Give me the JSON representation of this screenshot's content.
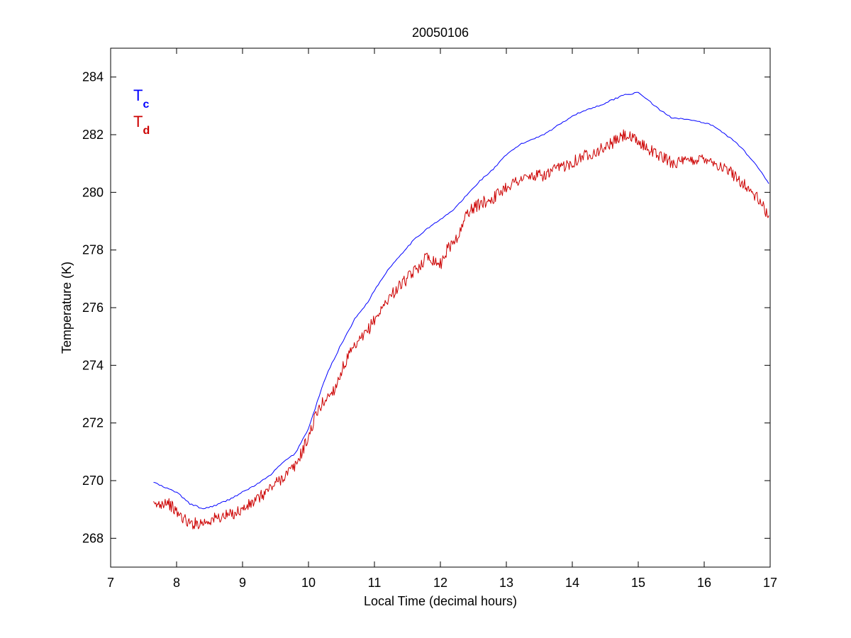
{
  "chart_data": {
    "type": "line",
    "title": "20050106",
    "xlabel": "Local Time (decimal hours)",
    "ylabel": "Temperature (K)",
    "xlim": [
      7,
      17
    ],
    "ylim": [
      267,
      285
    ],
    "xticks": [
      7,
      8,
      9,
      10,
      11,
      12,
      13,
      14,
      15,
      16,
      17
    ],
    "yticks": [
      268,
      270,
      272,
      274,
      276,
      278,
      280,
      282,
      284
    ],
    "grid": false,
    "legend_position": "top-left",
    "series": [
      {
        "name": "T",
        "subscript": "c",
        "color": "#0000ff",
        "noisy": false,
        "points": [
          [
            7.65,
            269.95
          ],
          [
            7.8,
            269.78
          ],
          [
            8.0,
            269.6
          ],
          [
            8.2,
            269.2
          ],
          [
            8.4,
            269.02
          ],
          [
            8.6,
            269.15
          ],
          [
            8.8,
            269.35
          ],
          [
            9.0,
            269.6
          ],
          [
            9.2,
            269.85
          ],
          [
            9.4,
            270.15
          ],
          [
            9.6,
            270.6
          ],
          [
            9.8,
            270.95
          ],
          [
            10.0,
            271.8
          ],
          [
            10.1,
            272.5
          ],
          [
            10.2,
            273.2
          ],
          [
            10.3,
            273.8
          ],
          [
            10.5,
            274.75
          ],
          [
            10.7,
            275.6
          ],
          [
            10.9,
            276.2
          ],
          [
            11.0,
            276.6
          ],
          [
            11.2,
            277.3
          ],
          [
            11.4,
            277.85
          ],
          [
            11.6,
            278.35
          ],
          [
            11.8,
            278.75
          ],
          [
            12.0,
            279.05
          ],
          [
            12.2,
            279.4
          ],
          [
            12.4,
            279.9
          ],
          [
            12.6,
            280.4
          ],
          [
            12.8,
            280.8
          ],
          [
            13.0,
            281.3
          ],
          [
            13.2,
            281.65
          ],
          [
            13.4,
            281.85
          ],
          [
            13.6,
            282.05
          ],
          [
            13.8,
            282.35
          ],
          [
            14.0,
            282.65
          ],
          [
            14.2,
            282.85
          ],
          [
            14.4,
            283.0
          ],
          [
            14.6,
            283.2
          ],
          [
            14.8,
            283.4
          ],
          [
            15.0,
            283.45
          ],
          [
            15.1,
            283.3
          ],
          [
            15.3,
            282.9
          ],
          [
            15.5,
            282.6
          ],
          [
            15.7,
            282.55
          ],
          [
            15.9,
            282.45
          ],
          [
            16.1,
            282.35
          ],
          [
            16.3,
            282.05
          ],
          [
            16.5,
            281.7
          ],
          [
            16.7,
            281.2
          ],
          [
            16.9,
            280.6
          ],
          [
            16.98,
            280.3
          ]
        ]
      },
      {
        "name": "T",
        "subscript": "d",
        "color": "#cc0000",
        "noisy": true,
        "points": [
          [
            7.65,
            269.1
          ],
          [
            7.85,
            269.3
          ],
          [
            8.0,
            268.9
          ],
          [
            8.2,
            268.5
          ],
          [
            8.4,
            268.55
          ],
          [
            8.6,
            268.7
          ],
          [
            8.8,
            268.8
          ],
          [
            9.0,
            269.0
          ],
          [
            9.2,
            269.3
          ],
          [
            9.4,
            269.7
          ],
          [
            9.6,
            270.1
          ],
          [
            9.8,
            270.5
          ],
          [
            10.0,
            271.5
          ],
          [
            10.1,
            272.2
          ],
          [
            10.2,
            272.65
          ],
          [
            10.4,
            273.2
          ],
          [
            10.5,
            273.8
          ],
          [
            10.6,
            274.3
          ],
          [
            10.8,
            274.9
          ],
          [
            10.9,
            275.2
          ],
          [
            11.0,
            275.6
          ],
          [
            11.1,
            275.9
          ],
          [
            11.2,
            276.3
          ],
          [
            11.4,
            276.8
          ],
          [
            11.5,
            277.0
          ],
          [
            11.7,
            277.5
          ],
          [
            11.8,
            277.8
          ],
          [
            12.0,
            277.5
          ],
          [
            12.1,
            278.0
          ],
          [
            12.2,
            278.3
          ],
          [
            12.3,
            278.6
          ],
          [
            12.4,
            279.3
          ],
          [
            12.6,
            279.6
          ],
          [
            12.8,
            279.8
          ],
          [
            13.0,
            280.2
          ],
          [
            13.2,
            280.45
          ],
          [
            13.4,
            280.55
          ],
          [
            13.6,
            280.6
          ],
          [
            13.8,
            280.85
          ],
          [
            14.0,
            281.05
          ],
          [
            14.2,
            281.3
          ],
          [
            14.4,
            281.45
          ],
          [
            14.6,
            281.7
          ],
          [
            14.8,
            282.0
          ],
          [
            14.95,
            281.8
          ],
          [
            15.1,
            281.6
          ],
          [
            15.3,
            281.3
          ],
          [
            15.5,
            281.05
          ],
          [
            15.7,
            281.05
          ],
          [
            15.9,
            281.15
          ],
          [
            16.05,
            281.2
          ],
          [
            16.2,
            280.95
          ],
          [
            16.4,
            280.7
          ],
          [
            16.6,
            280.3
          ],
          [
            16.8,
            279.8
          ],
          [
            16.98,
            279.2
          ]
        ]
      }
    ]
  }
}
